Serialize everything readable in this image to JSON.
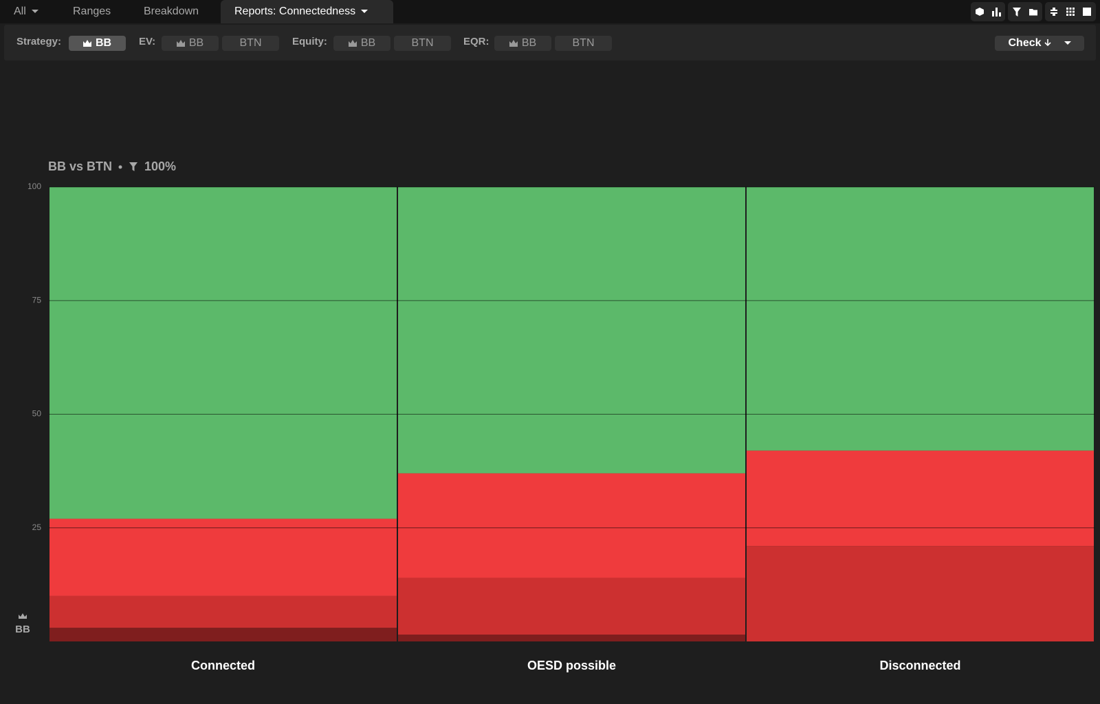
{
  "tabs": [
    "All",
    "Ranges",
    "Breakdown",
    "Reports: Connectedness"
  ],
  "toolbar": {
    "strategy_label": "Strategy:",
    "strategy_buttons": [
      "BB"
    ],
    "ev_label": "EV:",
    "ev_buttons": [
      "BB",
      "BTN"
    ],
    "equity_label": "Equity:",
    "equity_buttons": [
      "BB",
      "BTN"
    ],
    "eqr_label": "EQR:",
    "eqr_buttons": [
      "BB",
      "BTN"
    ],
    "action": "Check"
  },
  "chart_data": {
    "type": "bar",
    "stacked": true,
    "title": "BB vs BTN",
    "filter": "100%",
    "player": "BB",
    "categories": [
      "Connected",
      "OESD possible",
      "Disconnected"
    ],
    "series": [
      {
        "color": "#7f1e1e",
        "values": [
          3,
          1.5,
          0
        ]
      },
      {
        "color": "#cc3030",
        "values": [
          7,
          12.5,
          21
        ]
      },
      {
        "color": "#ef3b3d",
        "values": [
          17,
          23,
          21
        ]
      },
      {
        "color": "#5cb96a",
        "values": [
          73,
          63,
          58
        ]
      }
    ],
    "ylim": [
      0,
      100
    ],
    "yticks": [
      25,
      50,
      75,
      100
    ],
    "grid": true
  }
}
